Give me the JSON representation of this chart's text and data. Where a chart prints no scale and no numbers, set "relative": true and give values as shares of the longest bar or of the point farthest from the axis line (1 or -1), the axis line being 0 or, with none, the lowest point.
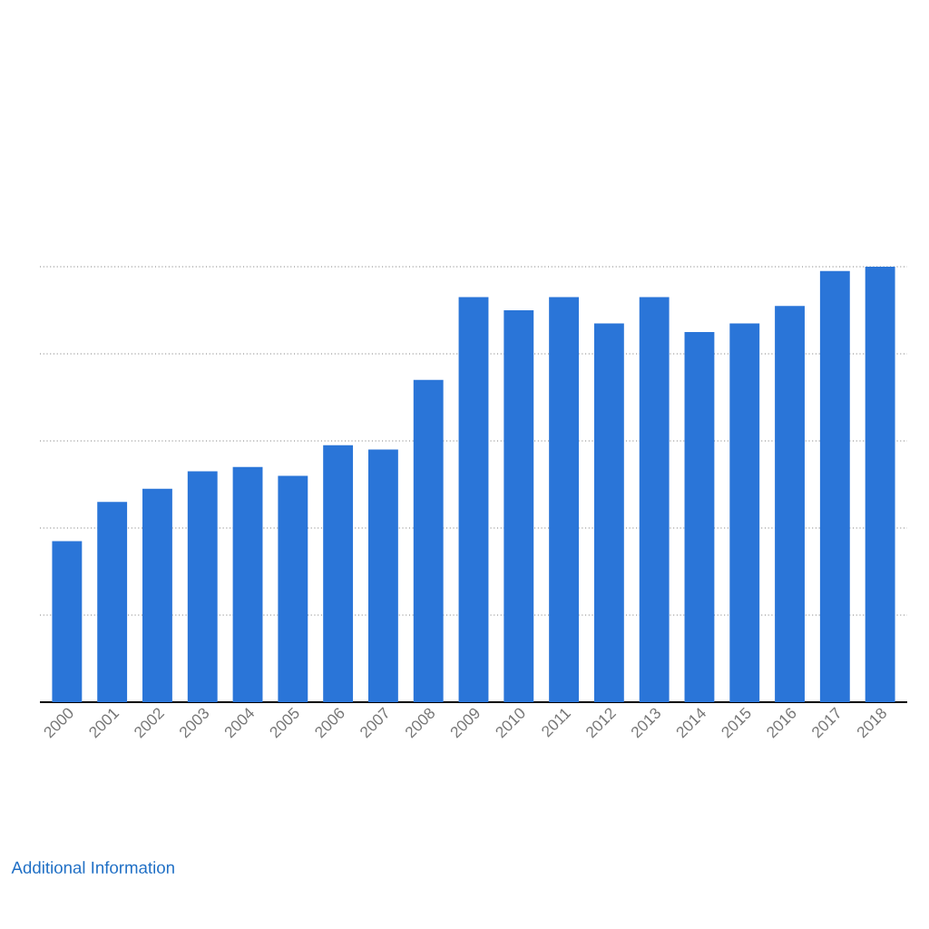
{
  "chart_data": {
    "type": "bar",
    "relative": true,
    "categories": [
      "2000",
      "2001",
      "2002",
      "2003",
      "2004",
      "2005",
      "2006",
      "2007",
      "2008",
      "2009",
      "2010",
      "2011",
      "2012",
      "2013",
      "2014",
      "2015",
      "2016",
      "2017",
      "2018"
    ],
    "values": [
      0.37,
      0.46,
      0.49,
      0.53,
      0.54,
      0.52,
      0.59,
      0.58,
      0.74,
      0.93,
      0.9,
      0.93,
      0.87,
      0.93,
      0.85,
      0.87,
      0.91,
      0.99,
      1
    ],
    "color": "#2a75d8",
    "grid": "y",
    "tick_labels": "x",
    "annotations": [
      "Additional Information"
    ]
  }
}
